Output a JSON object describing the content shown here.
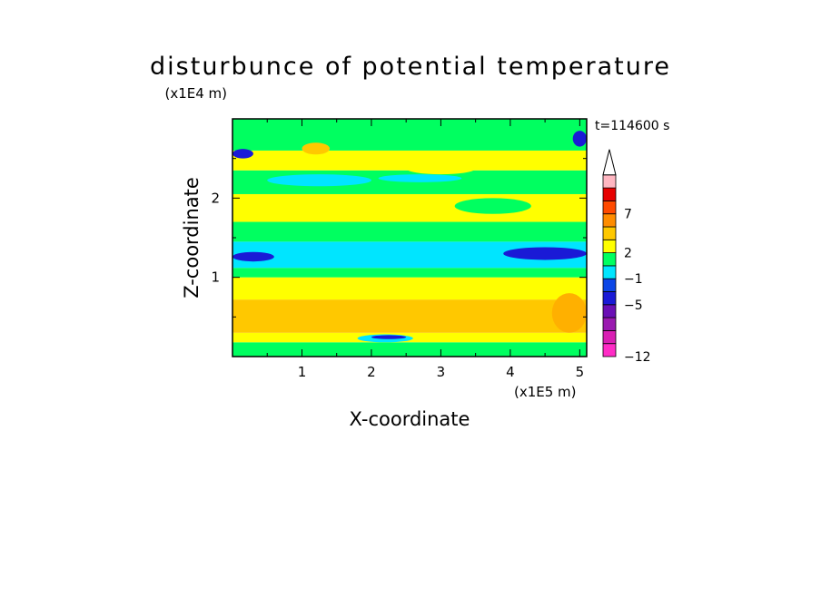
{
  "chart_data": {
    "type": "heatmap",
    "title": "disturbunce of potential temperature",
    "xlabel": "X-coordinate",
    "ylabel": "Z-coordinate",
    "x_unit": "(x1E5 m)",
    "y_unit": "(x1E4 m)",
    "time_label": "t=114600 s",
    "xlim": [
      0,
      5.1
    ],
    "ylim": [
      0,
      3
    ],
    "x_ticks": [
      "1",
      "2",
      "3",
      "4",
      "5"
    ],
    "x_tick_values": [
      1,
      2,
      3,
      4,
      5
    ],
    "y_ticks": [
      "1",
      "2"
    ],
    "y_tick_values": [
      1,
      2
    ],
    "grid": false,
    "colorbar": {
      "labels": [
        "7",
        "2",
        "−1",
        "−5",
        "−12"
      ],
      "label_levels": [
        7,
        2,
        -1,
        -5,
        -12
      ],
      "colors_bottom_to_top": [
        "#ff2cc6",
        "#d91fb3",
        "#9a1ab0",
        "#6a0fb5",
        "#1a1ad6",
        "#0c46e6",
        "#00e5ff",
        "#00ff60",
        "#ffff00",
        "#ffc800",
        "#ff8c00",
        "#ff4a00",
        "#e60000",
        "#ffb6c1"
      ],
      "extend_top": true
    },
    "layers": [
      {
        "z": [
          0.0,
          0.18
        ],
        "color": "#00ff60"
      },
      {
        "z": [
          0.18,
          0.3
        ],
        "color": "#ffff00"
      },
      {
        "z": [
          0.3,
          0.72
        ],
        "color": "#ffc800"
      },
      {
        "z": [
          0.72,
          1.0
        ],
        "color": "#ffff00"
      },
      {
        "z": [
          1.0,
          1.12
        ],
        "color": "#00ff60"
      },
      {
        "z": [
          1.12,
          1.45
        ],
        "color": "#00e5ff"
      },
      {
        "z": [
          1.45,
          1.7
        ],
        "color": "#00ff60"
      },
      {
        "z": [
          1.7,
          2.05
        ],
        "color": "#ffff00"
      },
      {
        "z": [
          2.05,
          2.35
        ],
        "color": "#00ff60"
      },
      {
        "z": [
          2.35,
          2.6
        ],
        "color": "#ffff00"
      },
      {
        "z": [
          2.6,
          3.0
        ],
        "color": "#00ff60"
      }
    ],
    "features": [
      {
        "x": [
          0.0,
          0.6
        ],
        "z": [
          1.2,
          1.32
        ],
        "color": "#1a1ad6"
      },
      {
        "x": [
          3.9,
          5.1
        ],
        "z": [
          1.22,
          1.38
        ],
        "color": "#1a1ad6"
      },
      {
        "x": [
          4.9,
          5.1
        ],
        "z": [
          2.65,
          2.85
        ],
        "color": "#1a1ad6"
      },
      {
        "x": [
          0.0,
          0.3
        ],
        "z": [
          2.5,
          2.62
        ],
        "color": "#1a1ad6"
      },
      {
        "x": [
          0.5,
          2.0
        ],
        "z": [
          2.15,
          2.3
        ],
        "color": "#00e5ff"
      },
      {
        "x": [
          2.1,
          3.3
        ],
        "z": [
          2.2,
          2.3
        ],
        "color": "#00e5ff"
      },
      {
        "x": [
          1.8,
          2.6
        ],
        "z": [
          0.18,
          0.28
        ],
        "color": "#00e5ff"
      },
      {
        "x": [
          2.0,
          2.5
        ],
        "z": [
          0.22,
          0.27
        ],
        "color": "#1a1ad6"
      },
      {
        "x": [
          1.0,
          1.4
        ],
        "z": [
          2.55,
          2.7
        ],
        "color": "#ffc800"
      },
      {
        "x": [
          2.5,
          3.5
        ],
        "z": [
          2.3,
          2.45
        ],
        "color": "#ffff00"
      },
      {
        "x": [
          3.2,
          4.3
        ],
        "z": [
          1.8,
          2.0
        ],
        "color": "#00ff60"
      },
      {
        "x": [
          4.6,
          5.1
        ],
        "z": [
          0.3,
          0.8
        ],
        "color": "#ffb000"
      }
    ]
  }
}
